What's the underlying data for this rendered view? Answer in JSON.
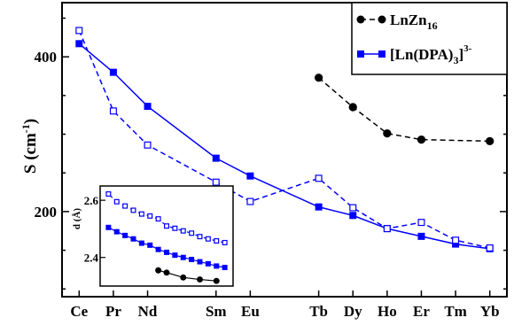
{
  "chart_data": [
    {
      "type": "line",
      "ylabel": {
        "main": "S (cm",
        "sup": "-1",
        "close": ")"
      },
      "xlabel": "",
      "categories": [
        "Ce",
        "Pr",
        "Nd",
        "Sm",
        "Eu",
        "Tb",
        "Dy",
        "Ho",
        "Er",
        "Tm",
        "Yb"
      ],
      "x": [
        0,
        1,
        2,
        4,
        5,
        7,
        8,
        9,
        10,
        11,
        12
      ],
      "xlim": [
        -0.5,
        12.5
      ],
      "ylim": [
        90,
        470
      ],
      "yticks": [
        200,
        400
      ],
      "grid": false,
      "legend_position": "top-right",
      "legend": [
        {
          "base": "LnZn",
          "sub": "16",
          "after": "",
          "sup": ""
        },
        {
          "base": "[Ln(DPA)",
          "sub": "3",
          "after": "]",
          "sup": "3-"
        }
      ],
      "series": [
        {
          "key": "lnzn16",
          "style": "dashed",
          "marker": "circle-filled",
          "color": "#000000",
          "points": [
            [
              7,
              373
            ],
            [
              8,
              335
            ],
            [
              9,
              301
            ],
            [
              10,
              293
            ],
            [
              12,
              291
            ]
          ]
        },
        {
          "key": "dpa_solid",
          "style": "solid",
          "marker": "square-filled",
          "color": "#0000ff",
          "points": [
            [
              0,
              417
            ],
            [
              1,
              380
            ],
            [
              2,
              336
            ],
            [
              4,
              269
            ],
            [
              5,
              246
            ],
            [
              7,
              206
            ],
            [
              8,
              195
            ],
            [
              9,
              178
            ],
            [
              10,
              168
            ],
            [
              11,
              158
            ],
            [
              12,
              152
            ]
          ]
        },
        {
          "key": "dpa_dashed",
          "style": "dashed",
          "marker": "square-open",
          "color": "#0000ff",
          "points": [
            [
              0,
              434
            ],
            [
              1,
              330
            ],
            [
              2,
              286
            ],
            [
              4,
              238
            ],
            [
              5,
              213
            ],
            [
              7,
              243
            ],
            [
              8,
              205
            ],
            [
              9,
              178
            ],
            [
              10,
              186
            ],
            [
              11,
              163
            ],
            [
              12,
              153
            ]
          ]
        }
      ]
    },
    {
      "type": "line",
      "ylabel": "d (Å)",
      "ylim": [
        2.3,
        2.65
      ],
      "xlim": [
        0,
        16
      ],
      "yticks": [
        2.4,
        2.6
      ],
      "yticklabels": [
        "2.4",
        "2.6"
      ],
      "series": [
        {
          "key": "inset_open",
          "style": "dashed",
          "marker": "square-open",
          "color": "#0000ff",
          "points": [
            [
              1,
              2.622
            ],
            [
              2,
              2.595
            ],
            [
              3,
              2.58
            ],
            [
              4,
              2.565
            ],
            [
              5,
              2.552
            ],
            [
              6,
              2.545
            ],
            [
              7,
              2.535
            ],
            [
              8,
              2.51
            ],
            [
              9,
              2.502
            ],
            [
              10,
              2.493
            ],
            [
              11,
              2.485
            ],
            [
              12,
              2.473
            ],
            [
              13,
              2.465
            ],
            [
              14,
              2.458
            ],
            [
              15,
              2.452
            ]
          ]
        },
        {
          "key": "inset_filled",
          "style": "solid",
          "marker": "square-filled",
          "color": "#0000ff",
          "points": [
            [
              1,
              2.505
            ],
            [
              2,
              2.49
            ],
            [
              3,
              2.477
            ],
            [
              4,
              2.465
            ],
            [
              5,
              2.45
            ],
            [
              6,
              2.443
            ],
            [
              7,
              2.428
            ],
            [
              8,
              2.418
            ],
            [
              9,
              2.408
            ],
            [
              10,
              2.4
            ],
            [
              11,
              2.393
            ],
            [
              12,
              2.385
            ],
            [
              13,
              2.378
            ],
            [
              14,
              2.37
            ],
            [
              15,
              2.365
            ]
          ]
        },
        {
          "key": "inset_black",
          "style": "solid",
          "marker": "circle-filled",
          "color": "#000000",
          "points": [
            [
              7,
              2.355
            ],
            [
              8,
              2.347
            ],
            [
              10,
              2.33
            ],
            [
              12,
              2.323
            ],
            [
              14,
              2.318
            ]
          ]
        }
      ]
    }
  ]
}
